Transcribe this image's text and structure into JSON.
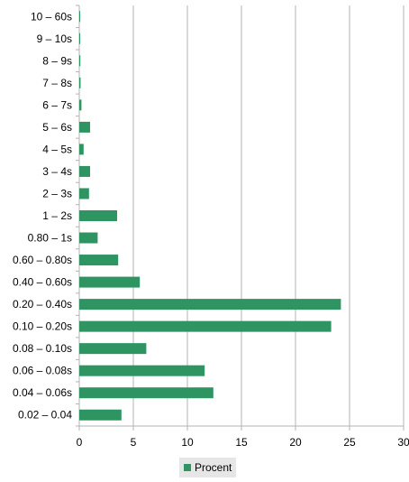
{
  "chart_data": {
    "type": "bar",
    "orientation": "horizontal",
    "categories": [
      "10 – 60s",
      "9 – 10s",
      "8 – 9s",
      "7 – 8s",
      "6 – 7s",
      "5 – 6s",
      "4 – 5s",
      "3 – 4s",
      "2 – 3s",
      "1 – 2s",
      "0.80 – 1s",
      "0.60 – 0.80s",
      "0.40 – 0.60s",
      "0.20 – 0.40s",
      "0.10 – 0.20s",
      "0.08 – 0.10s",
      "0.06 – 0.08s",
      "0.04 – 0.06s",
      "0.02 – 0.04"
    ],
    "series": [
      {
        "name": "Procent",
        "color": "#2e9461",
        "values": [
          0.05,
          0.03,
          0.1,
          0.12,
          0.2,
          1.0,
          0.4,
          1.0,
          0.9,
          3.5,
          1.7,
          3.6,
          5.6,
          24.2,
          23.3,
          6.2,
          11.6,
          12.4,
          3.9
        ]
      }
    ],
    "xlim": [
      0,
      30
    ],
    "xticks": [
      0,
      5,
      10,
      15,
      20,
      25,
      30
    ],
    "grid": "vertical",
    "legend": "bottom-center",
    "title": "",
    "xlabel": "",
    "ylabel": ""
  }
}
